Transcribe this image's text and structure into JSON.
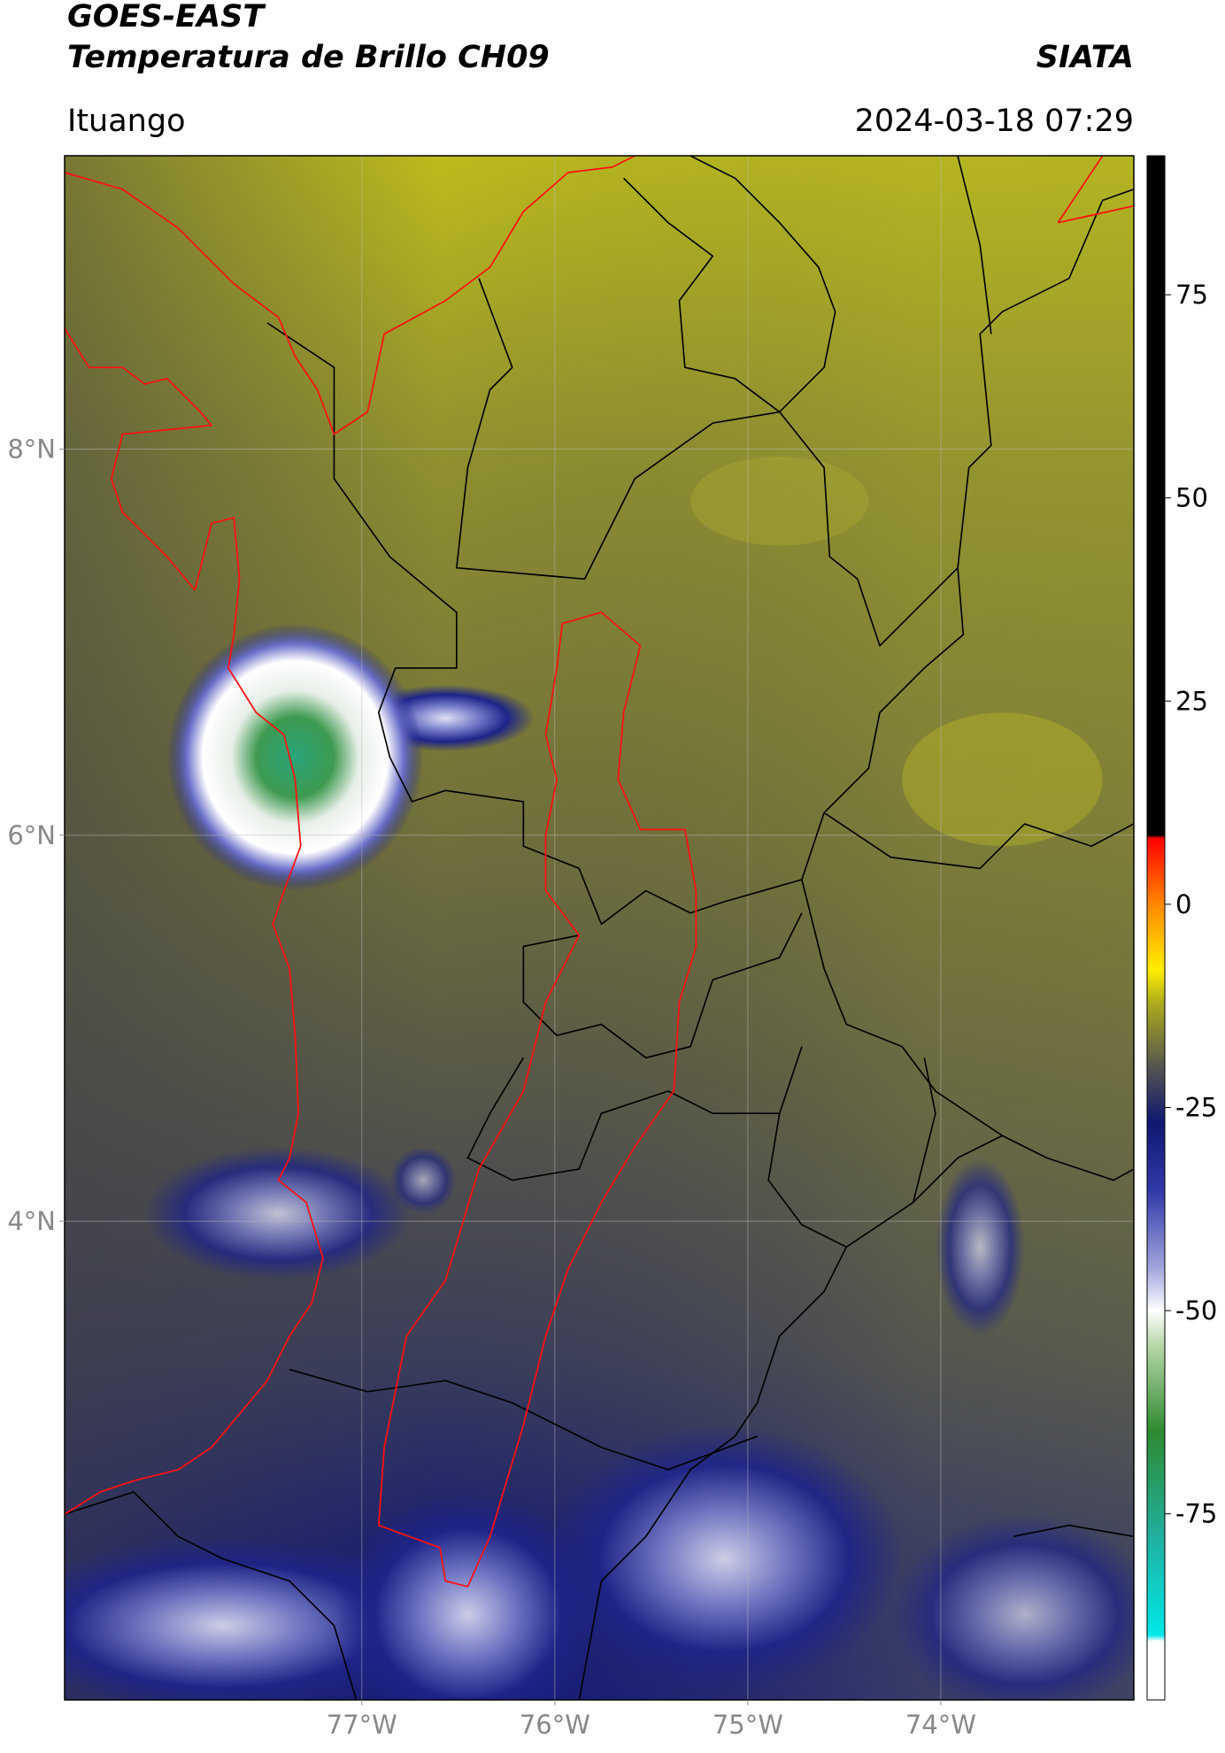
{
  "header": {
    "title": "GOES-EAST",
    "subtitle": "Temperatura de Brillo CH09",
    "brand": "SIATA",
    "location": "Ituango",
    "datetime": "2024-03-18 07:29"
  },
  "chart_data": {
    "type": "map",
    "xlim": [
      -78.54,
      -73.0
    ],
    "ylim": [
      1.52,
      9.52
    ],
    "xticks": [
      {
        "value": -77,
        "label": "77°W"
      },
      {
        "value": -76,
        "label": "76°W"
      },
      {
        "value": -75,
        "label": "75°W"
      },
      {
        "value": -74,
        "label": "74°W"
      }
    ],
    "yticks": [
      {
        "value": 8,
        "label": "8°N"
      },
      {
        "value": 6,
        "label": "6°N"
      },
      {
        "value": 4,
        "label": "4°N"
      }
    ],
    "grid": true,
    "colorbar": {
      "lim": [
        -97.9,
        92.1
      ],
      "ticks": [
        75,
        50,
        25,
        0,
        -25,
        -50,
        -75
      ]
    }
  }
}
